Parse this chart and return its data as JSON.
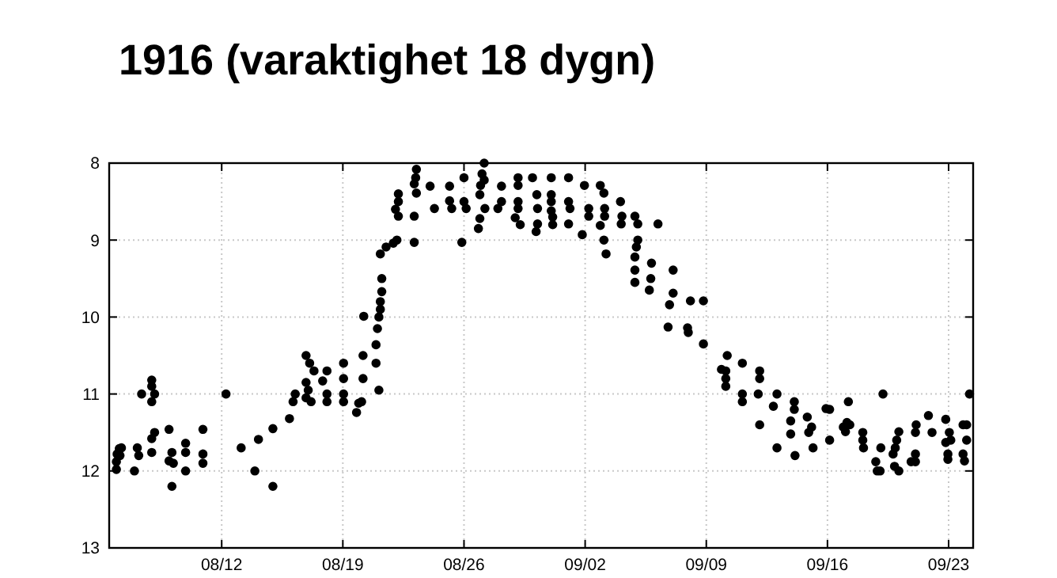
{
  "chart_data": {
    "type": "scatter",
    "title": "1916 (varaktighet 18 dygn)",
    "x": [
      "1916-08-05T22:00",
      "1916-08-05T22:00",
      "1916-08-05T23:00",
      "1916-08-06T02:00",
      "1916-08-06T05:00",
      "1916-08-06T03:00",
      "1916-08-06T23:00",
      "1916-08-07T03:00",
      "1916-08-07T05:00",
      "1916-08-07T09:00",
      "1916-08-07T23:00",
      "1916-08-07T23:00",
      "1916-08-07T23:00",
      "1916-08-07T23:00",
      "1916-08-07T23:00",
      "1916-08-08T03:00",
      "1916-08-08T03:00",
      "1916-08-08T23:00",
      "1916-08-08T23:00",
      "1916-08-09T03:00",
      "1916-08-09T03:00",
      "1916-08-09T05:00",
      "1916-08-09T22:00",
      "1916-08-09T22:00",
      "1916-08-09T22:00",
      "1916-08-10T22:00",
      "1916-08-10T22:00",
      "1916-08-10T22:00",
      "1916-08-12T06:00",
      "1916-08-13T03:00",
      "1916-08-13T22:00",
      "1916-08-14T03:00",
      "1916-08-14T23:00",
      "1916-08-14T23:00",
      "1916-08-15T22:00",
      "1916-08-16T03:00",
      "1916-08-16T06:00",
      "1916-08-16T21:00",
      "1916-08-16T21:00",
      "1916-08-16T21:00",
      "1916-08-17T00:00",
      "1916-08-17T02:00",
      "1916-08-17T04:00",
      "1916-08-17T08:00",
      "1916-08-17T20:00",
      "1916-08-18T02:00",
      "1916-08-18T02:00",
      "1916-08-18T02:00",
      "1916-08-19T01:00",
      "1916-08-19T01:00",
      "1916-08-19T01:00",
      "1916-08-19T01:00",
      "1916-08-19T19:00",
      "1916-08-19T22:00",
      "1916-08-20T02:00",
      "1916-08-20T04:00",
      "1916-08-20T04:00",
      "1916-08-20T05:00",
      "1916-08-20T22:00",
      "1916-08-20T22:00",
      "1916-08-21T00:00",
      "1916-08-21T02:00",
      "1916-08-21T02:00",
      "1916-08-21T04:00",
      "1916-08-21T04:00",
      "1916-08-21T04:00",
      "1916-08-21T06:00",
      "1916-08-21T06:00",
      "1916-08-21T12:00",
      "1916-08-21T22:00",
      "1916-08-22T01:00",
      "1916-08-22T03:00",
      "1916-08-22T05:00",
      "1916-08-22T05:00",
      "1916-08-22T05:00",
      "1916-08-23T03:00",
      "1916-08-23T03:00",
      "1916-08-23T03:00",
      "1916-08-23T05:00",
      "1916-08-23T06:00",
      "1916-08-23T06:00",
      "1916-08-24T01:00",
      "1916-08-24T07:00",
      "1916-08-25T04:00",
      "1916-08-25T04:00",
      "1916-08-25T07:00",
      "1916-08-25T21:00",
      "1916-08-26T00:00",
      "1916-08-26T00:00",
      "1916-08-26T03:00",
      "1916-08-26T20:00",
      "1916-08-26T22:00",
      "1916-08-26T22:00",
      "1916-08-26T23:00",
      "1916-08-27T01:00",
      "1916-08-27T04:00",
      "1916-08-27T04:00",
      "1916-08-27T05:00",
      "1916-08-27T23:00",
      "1916-08-28T04:00",
      "1916-08-28T04:00",
      "1916-08-28T23:00",
      "1916-08-29T03:00",
      "1916-08-29T03:00",
      "1916-08-29T03:00",
      "1916-08-29T03:00",
      "1916-08-29T06:00",
      "1916-08-29T23:00",
      "1916-08-30T04:00",
      "1916-08-30T05:00",
      "1916-08-30T06:00",
      "1916-08-30T06:00",
      "1916-08-31T01:00",
      "1916-08-31T01:00",
      "1916-08-31T01:00",
      "1916-08-31T01:00",
      "1916-08-31T03:00",
      "1916-08-31T03:00",
      "1916-09-01T01:00",
      "1916-09-01T01:00",
      "1916-09-01T01:00",
      "1916-09-01T03:00",
      "1916-09-01T20:00",
      "1916-09-01T23:00",
      "1916-09-02T05:00",
      "1916-09-02T05:00",
      "1916-09-02T21:00",
      "1916-09-02T21:00",
      "1916-09-03T02:00",
      "1916-09-03T02:00",
      "1916-09-03T03:00",
      "1916-09-03T03:00",
      "1916-09-03T05:00",
      "1916-09-04T01:00",
      "1916-09-04T02:00",
      "1916-09-04T03:00",
      "1916-09-04T21:00",
      "1916-09-04T21:00",
      "1916-09-04T21:00",
      "1916-09-04T21:00",
      "1916-09-04T23:00",
      "1916-09-05T01:00",
      "1916-09-05T01:00",
      "1916-09-05T17:00",
      "1916-09-05T19:00",
      "1916-09-05T20:00",
      "1916-09-06T05:00",
      "1916-09-06T19:00",
      "1916-09-06T21:00",
      "1916-09-07T02:00",
      "1916-09-07T02:00",
      "1916-09-07T22:00",
      "1916-09-07T23:00",
      "1916-09-08T02:00",
      "1916-09-08T20:00",
      "1916-09-08T20:00",
      "1916-09-09T21:00",
      "1916-09-10T03:00",
      "1916-09-10T03:00",
      "1916-09-10T03:00",
      "1916-09-10T05:00",
      "1916-09-11T02:00",
      "1916-09-11T02:00",
      "1916-09-11T02:00",
      "1916-09-12T00:00",
      "1916-09-12T02:00",
      "1916-09-12T02:00",
      "1916-09-12T02:00",
      "1916-09-12T21:00",
      "1916-09-13T02:00",
      "1916-09-13T02:00",
      "1916-09-13T21:00",
      "1916-09-13T21:00",
      "1916-09-14T02:00",
      "1916-09-14T02:00",
      "1916-09-14T03:00",
      "1916-09-14T20:00",
      "1916-09-14T22:00",
      "1916-09-15T02:00",
      "1916-09-15T04:00",
      "1916-09-15T22:00",
      "1916-09-16T03:00",
      "1916-09-16T03:00",
      "1916-09-16T22:00",
      "1916-09-17T01:00",
      "1916-09-17T03:00",
      "1916-09-17T05:00",
      "1916-09-17T07:00",
      "1916-09-18T01:00",
      "1916-09-18T01:00",
      "1916-09-18T02:00",
      "1916-09-18T19:00",
      "1916-09-18T21:00",
      "1916-09-19T01:00",
      "1916-09-19T02:00",
      "1916-09-19T05:00",
      "1916-09-19T19:00",
      "1916-09-19T21:00",
      "1916-09-19T22:00",
      "1916-09-20T00:00",
      "1916-09-20T03:00",
      "1916-09-20T03:00",
      "1916-09-20T20:00",
      "1916-09-21T02:00",
      "1916-09-21T02:00",
      "1916-09-21T02:00",
      "1916-09-21T03:00",
      "1916-09-21T20:00",
      "1916-09-22T01:00",
      "1916-09-22T20:00",
      "1916-09-22T20:00",
      "1916-09-22T23:00",
      "1916-09-22T23:00",
      "1916-09-23T01:00",
      "1916-09-23T03:00",
      "1916-09-23T20:00",
      "1916-09-23T20:00",
      "1916-09-23T22:00",
      "1916-09-24T01:00",
      "1916-09-24T01:00",
      "1916-09-24T05:00"
    ],
    "values": [
      11.98,
      11.88,
      11.78,
      11.71,
      11.7,
      11.8,
      12.0,
      11.7,
      11.8,
      11.0,
      10.82,
      10.9,
      11.1,
      11.58,
      11.76,
      11.0,
      11.5,
      11.46,
      11.87,
      11.76,
      12.2,
      11.9,
      11.64,
      11.76,
      12.0,
      11.46,
      11.78,
      11.9,
      11.0,
      11.7,
      12.0,
      11.59,
      11.45,
      12.2,
      11.32,
      11.1,
      11.0,
      10.5,
      10.85,
      11.05,
      10.95,
      10.6,
      11.1,
      10.7,
      10.83,
      10.7,
      11.0,
      11.1,
      10.6,
      10.8,
      11.0,
      11.1,
      11.24,
      11.12,
      11.1,
      10.5,
      10.8,
      9.99,
      10.6,
      10.36,
      10.15,
      10.95,
      10.0,
      9.9,
      9.8,
      9.18,
      9.67,
      9.5,
      9.09,
      9.04,
      8.6,
      9.0,
      8.69,
      8.5,
      8.4,
      9.03,
      8.69,
      8.27,
      8.19,
      8.39,
      8.08,
      8.3,
      8.59,
      8.3,
      8.49,
      8.59,
      9.03,
      8.19,
      8.5,
      8.59,
      8.85,
      8.72,
      8.41,
      8.29,
      8.14,
      8.0,
      8.22,
      8.59,
      8.59,
      8.3,
      8.5,
      8.71,
      8.59,
      8.5,
      8.29,
      8.19,
      8.8,
      8.19,
      8.89,
      8.41,
      8.59,
      8.79,
      8.19,
      8.41,
      8.62,
      8.5,
      8.8,
      8.7,
      8.19,
      8.5,
      8.79,
      8.59,
      8.93,
      8.29,
      8.69,
      8.59,
      8.29,
      8.81,
      8.39,
      9.0,
      8.59,
      8.69,
      9.18,
      8.5,
      8.79,
      8.69,
      8.69,
      9.22,
      9.55,
      9.39,
      9.09,
      8.79,
      9.0,
      9.65,
      9.5,
      9.3,
      8.79,
      10.13,
      9.84,
      9.39,
      9.69,
      10.14,
      10.2,
      9.79,
      9.79,
      10.35,
      10.68,
      10.7,
      10.8,
      10.9,
      10.5,
      10.6,
      11.0,
      11.1,
      11.0,
      10.7,
      10.8,
      11.4,
      11.16,
      11.0,
      11.7,
      11.35,
      11.52,
      11.1,
      11.2,
      11.8,
      11.3,
      11.5,
      11.43,
      11.7,
      11.19,
      11.6,
      11.2,
      11.43,
      11.49,
      11.37,
      11.1,
      11.4,
      11.5,
      11.6,
      11.7,
      11.88,
      12.0,
      12.0,
      11.7,
      11.0,
      11.78,
      11.94,
      11.7,
      11.6,
      11.49,
      12.0,
      11.88,
      11.88,
      11.78,
      11.5,
      11.4,
      11.28,
      11.5,
      11.33,
      11.63,
      11.78,
      11.85,
      11.5,
      11.6,
      11.4,
      11.78,
      11.87,
      11.4,
      11.6,
      11.0
    ],
    "color": "#000000",
    "marker": "circle",
    "xlim": [
      "1916-08-05T12:00",
      "1916-09-24T10:00"
    ],
    "xticks": [
      {
        "value": "1916-08-12",
        "label": "08/12"
      },
      {
        "value": "1916-08-19",
        "label": "08/19"
      },
      {
        "value": "1916-08-26",
        "label": "08/26"
      },
      {
        "value": "1916-09-02",
        "label": "09/02"
      },
      {
        "value": "1916-09-09",
        "label": "09/09"
      },
      {
        "value": "1916-09-16",
        "label": "09/16"
      },
      {
        "value": "1916-09-23",
        "label": "09/23"
      }
    ],
    "ylim": [
      13,
      8
    ],
    "yticks": [
      8,
      9,
      10,
      11,
      12,
      13
    ],
    "grid": true
  }
}
